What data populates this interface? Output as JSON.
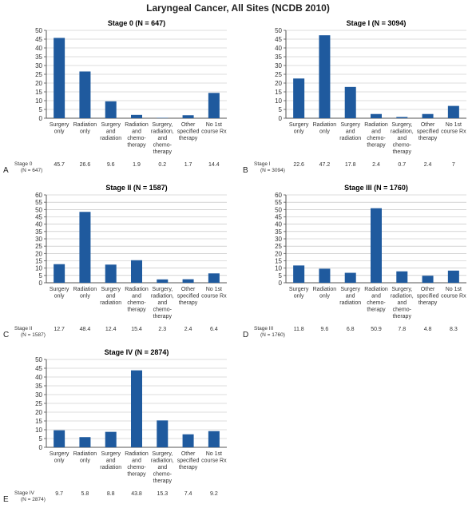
{
  "title": "Laryngeal Cancer, All Sites (NCDB 2010)",
  "colors": {
    "bar": "#1f5a9e",
    "axis": "#555555",
    "grid": "#bbbbbb"
  },
  "chart_data": [
    {
      "type": "bar",
      "letter": "A",
      "title": "Stage 0 (N = 647)",
      "row_label": [
        "Stage 0",
        "(N = 647)"
      ],
      "categories": [
        [
          "Surgery",
          "only"
        ],
        [
          "Radiation",
          "only"
        ],
        [
          "Surgery",
          "and",
          "radiation"
        ],
        [
          "Radiation",
          "and",
          "chemo-",
          "therapy"
        ],
        [
          "Surgery,",
          "radiation,",
          "and",
          "chemo-",
          "therapy"
        ],
        [
          "Other",
          "specified",
          "therapy"
        ],
        [
          "No 1st",
          "course Rx"
        ]
      ],
      "values": [
        45.7,
        26.6,
        9.6,
        1.9,
        0.2,
        1.7,
        14.4
      ],
      "value_labels": [
        "45.7",
        "26.6",
        "9.6",
        "1.9",
        "0.2",
        "1.7",
        "14.4"
      ],
      "ylim": [
        0,
        50
      ],
      "yticks": [
        0,
        5,
        10,
        15,
        20,
        25,
        30,
        35,
        40,
        45,
        50
      ]
    },
    {
      "type": "bar",
      "letter": "B",
      "title": "Stage I (N = 3094)",
      "row_label": [
        "Stage I",
        "(N = 3094)"
      ],
      "categories": [
        [
          "Surgery",
          "only"
        ],
        [
          "Radiation",
          "only"
        ],
        [
          "Surgery",
          "and",
          "radiation"
        ],
        [
          "Radiation",
          "and",
          "chemo-",
          "therapy"
        ],
        [
          "Surgery,",
          "radiation,",
          "and",
          "chemo-",
          "therapy"
        ],
        [
          "Other",
          "specified",
          "therapy"
        ],
        [
          "No 1st",
          "course Rx"
        ]
      ],
      "values": [
        22.6,
        47.2,
        17.8,
        2.4,
        0.7,
        2.4,
        7
      ],
      "value_labels": [
        "22.6",
        "47.2",
        "17.8",
        "2.4",
        "0.7",
        "2.4",
        "7"
      ],
      "ylim": [
        0,
        50
      ],
      "yticks": [
        0,
        5,
        10,
        15,
        20,
        25,
        30,
        35,
        40,
        45,
        50
      ]
    },
    {
      "type": "bar",
      "letter": "C",
      "title": "Stage II (N = 1587)",
      "row_label": [
        "Stage II",
        "(N = 1587)"
      ],
      "categories": [
        [
          "Surgery",
          "only"
        ],
        [
          "Radiation",
          "only"
        ],
        [
          "Surgery",
          "and",
          "radiation"
        ],
        [
          "Radiation",
          "and",
          "chemo-",
          "therapy"
        ],
        [
          "Surgery,",
          "radiation,",
          "and",
          "chemo-",
          "therapy"
        ],
        [
          "Other",
          "specified",
          "therapy"
        ],
        [
          "No 1st",
          "course Rx"
        ]
      ],
      "values": [
        12.7,
        48.4,
        12.4,
        15.4,
        2.3,
        2.4,
        6.4
      ],
      "value_labels": [
        "12.7",
        "48.4",
        "12.4",
        "15.4",
        "2.3",
        "2.4",
        "6.4"
      ],
      "ylim": [
        0,
        60
      ],
      "yticks": [
        0,
        5,
        10,
        15,
        20,
        25,
        30,
        35,
        40,
        45,
        50,
        55,
        60
      ]
    },
    {
      "type": "bar",
      "letter": "D",
      "title": "Stage III (N = 1760)",
      "row_label": [
        "Stage III",
        "(N = 1760)"
      ],
      "categories": [
        [
          "Surgery",
          "only"
        ],
        [
          "Radiation",
          "only"
        ],
        [
          "Surgery",
          "and",
          "radiation"
        ],
        [
          "Radiation",
          "and",
          "chemo-",
          "therapy"
        ],
        [
          "Surgery,",
          "radiation,",
          "and",
          "chemo-",
          "therapy"
        ],
        [
          "Other",
          "specified",
          "therapy"
        ],
        [
          "No 1st",
          "course Rx"
        ]
      ],
      "values": [
        11.8,
        9.6,
        6.8,
        50.9,
        7.8,
        4.8,
        8.3
      ],
      "value_labels": [
        "11.8",
        "9.6",
        "6.8",
        "50.9",
        "7.8",
        "4.8",
        "8.3"
      ],
      "ylim": [
        0,
        60
      ],
      "yticks": [
        0,
        5,
        10,
        15,
        20,
        25,
        30,
        35,
        40,
        45,
        50,
        55,
        60
      ]
    },
    {
      "type": "bar",
      "letter": "E",
      "title": "Stage IV (N = 2874)",
      "row_label": [
        "Stage IV",
        "(N = 2874)"
      ],
      "categories": [
        [
          "Surgery",
          "only"
        ],
        [
          "Radiation",
          "only"
        ],
        [
          "Surgery",
          "and",
          "radiation"
        ],
        [
          "Radiation",
          "and",
          "chemo-",
          "therapy"
        ],
        [
          "Surgery,",
          "radiation,",
          "and",
          "chemo-",
          "therapy"
        ],
        [
          "Other",
          "specified",
          "therapy"
        ],
        [
          "No 1st",
          "course Rx"
        ]
      ],
      "values": [
        9.7,
        5.8,
        8.8,
        43.8,
        15.3,
        7.4,
        9.2
      ],
      "value_labels": [
        "9.7",
        "5.8",
        "8.8",
        "43.8",
        "15.3",
        "7.4",
        "9.2"
      ],
      "ylim": [
        0,
        50
      ],
      "yticks": [
        0,
        5,
        10,
        15,
        20,
        25,
        30,
        35,
        40,
        45,
        50
      ]
    }
  ]
}
